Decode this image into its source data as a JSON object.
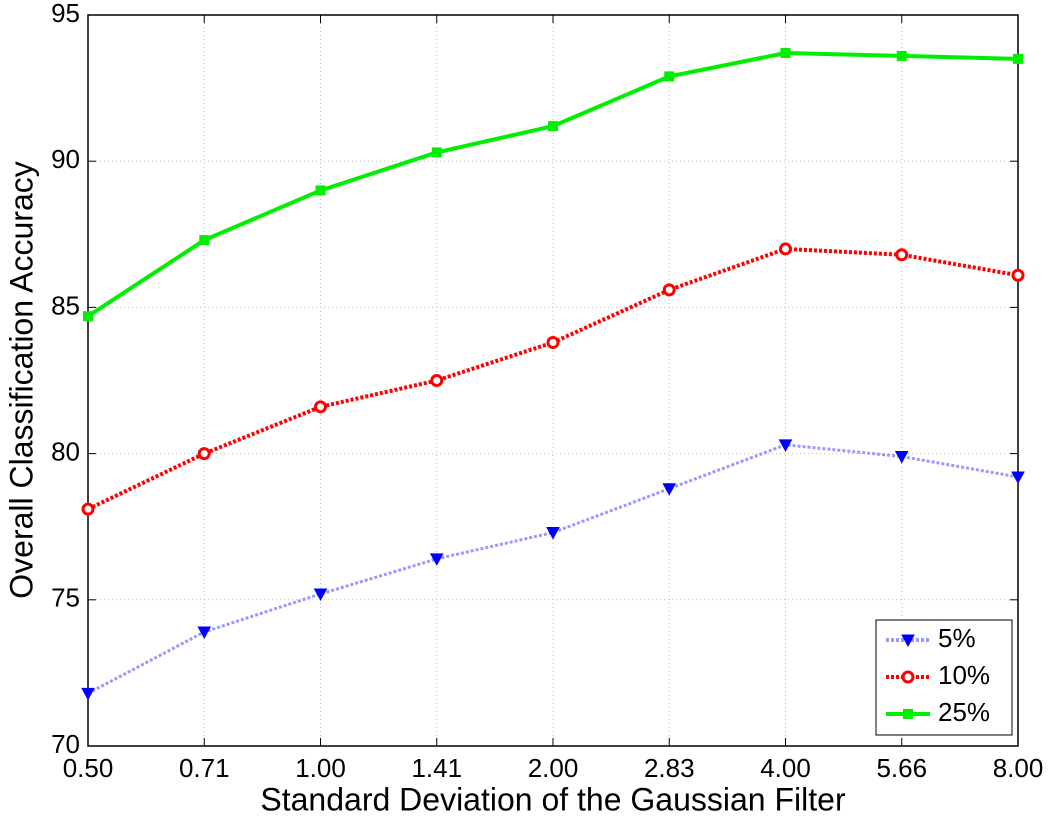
{
  "chart_data": {
    "type": "line",
    "x_label": "Standard Deviation of the Gaussian Filter",
    "y_label": "Overall Classification Accuracy",
    "categories": [
      "0.50",
      "0.71",
      "1.00",
      "1.41",
      "2.00",
      "2.83",
      "4.00",
      "5.66",
      "8.00"
    ],
    "series": [
      {
        "name": "5%",
        "color": "#0000ff",
        "line_color": "#9999ff",
        "dash": "dotted",
        "marker": "triangle-down",
        "values": [
          71.8,
          73.9,
          75.2,
          76.4,
          77.3,
          78.8,
          80.3,
          79.9,
          79.2
        ]
      },
      {
        "name": "10%",
        "color": "#ff0000",
        "line_color": "#ff0000",
        "dash": "dotted",
        "marker": "circle",
        "values": [
          78.1,
          80.0,
          81.6,
          82.5,
          83.8,
          85.6,
          87.0,
          86.8,
          86.1
        ]
      },
      {
        "name": "25%",
        "color": "#00ee00",
        "line_color": "#00ee00",
        "dash": "solid",
        "marker": "square",
        "values": [
          84.7,
          87.3,
          89.0,
          90.3,
          91.2,
          92.9,
          93.7,
          93.6,
          93.5
        ]
      }
    ],
    "ylim": [
      70,
      95
    ],
    "yticks": [
      70,
      75,
      80,
      85,
      90,
      95
    ],
    "grid": true,
    "legend": "lower right"
  }
}
